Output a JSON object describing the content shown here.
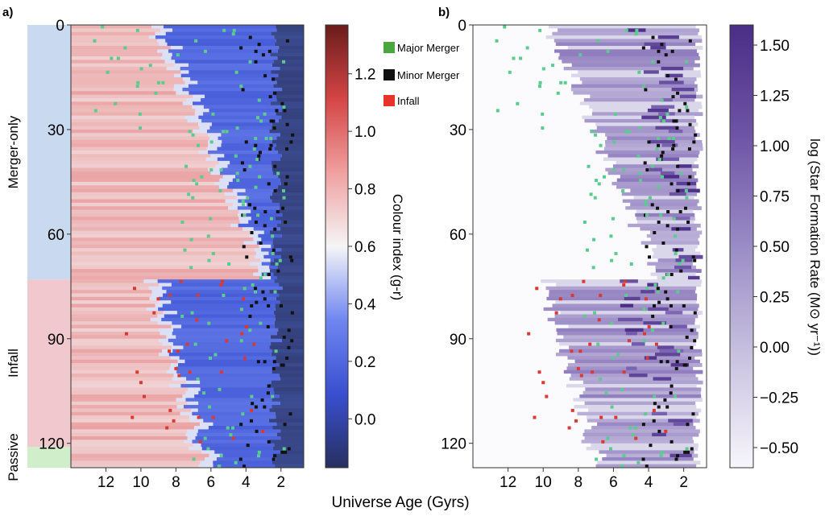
{
  "figure": {
    "xlabel_shared": "Universe Age (Gyrs)"
  },
  "legend": [
    {
      "label": "Major Merger",
      "color": "#4aa63f"
    },
    {
      "label": "Minor Merger",
      "color": "#111111"
    },
    {
      "label": "Infall",
      "color": "#e8332b"
    }
  ],
  "chart_data": [
    {
      "panel_label": "a)",
      "type": "heatmap",
      "x_ticks": [
        12,
        10,
        8,
        6,
        4,
        2
      ],
      "xlim": [
        14,
        0.7
      ],
      "x_inverted": true,
      "y_ticks": [
        0,
        30,
        60,
        90,
        120
      ],
      "ylim": [
        0,
        127
      ],
      "y_inverted": true,
      "groups": [
        {
          "label": "Merger-only",
          "rows": [
            0,
            73
          ],
          "color": "#c9daf0"
        },
        {
          "label": "Infall",
          "rows": [
            73,
            121
          ],
          "color": "#f1c8cd"
        },
        {
          "label": "Passive",
          "rows": [
            121,
            127
          ],
          "color": "#cfeec9"
        }
      ],
      "colorbar": {
        "label": "Colour index (g-r)",
        "ticks": [
          0.0,
          0.2,
          0.4,
          0.6,
          0.8,
          1.0,
          1.2
        ],
        "tick_labels": [
          "0.0",
          "0.2",
          "0.4",
          "0.6",
          "0.8",
          "1.0",
          "1.2"
        ],
        "range": [
          -0.17,
          1.37
        ],
        "colors": [
          "#27305f",
          "#3a4fd0",
          "#6f86f0",
          "#f5f5f7",
          "#f0a0a0",
          "#d44545",
          "#6a1c1c"
        ]
      }
    },
    {
      "panel_label": "b)",
      "type": "heatmap",
      "x_ticks": [
        12,
        10,
        8,
        6,
        4,
        2
      ],
      "xlim": [
        14,
        0.7
      ],
      "x_inverted": true,
      "y_ticks": [
        0,
        30,
        60,
        90,
        120
      ],
      "ylim": [
        0,
        127
      ],
      "y_inverted": true,
      "colorbar": {
        "label": "log (Star Formation Rate (M⊙ yr⁻¹))",
        "ticks": [
          -0.5,
          -0.25,
          0.0,
          0.25,
          0.5,
          0.75,
          1.0,
          1.25,
          1.5
        ],
        "tick_labels": [
          "−0.50",
          "−0.25",
          "0.00",
          "0.25",
          "0.50",
          "0.75",
          "1.00",
          "1.25",
          "1.50"
        ],
        "range": [
          -0.6,
          1.6
        ],
        "colors": [
          "#f7f6fb",
          "#c9c2e0",
          "#9a8cc6",
          "#6e54a6",
          "#4a2d86"
        ]
      }
    }
  ]
}
